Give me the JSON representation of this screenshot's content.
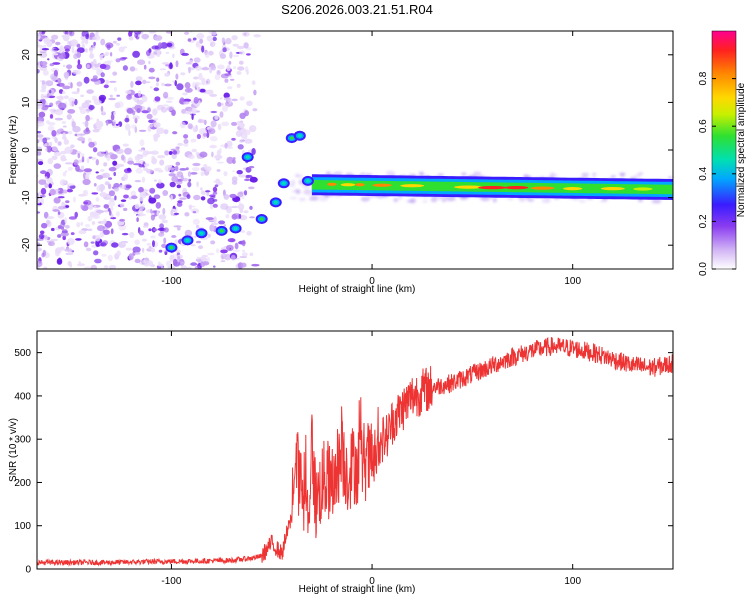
{
  "title": "S206.2026.003.21.51.R04",
  "chart_data": [
    {
      "type": "heatmap",
      "xlabel": "Height of straight line (km)",
      "ylabel": "Frequency (Hz)",
      "xlim": [
        -167,
        150
      ],
      "ylim": [
        -25,
        25
      ],
      "x_ticks": [
        -100,
        0,
        100
      ],
      "y_ticks": [
        20,
        10,
        0,
        -10,
        -20
      ],
      "colorbar": {
        "label": "Normalized spectral amplitude",
        "range": [
          0,
          1
        ],
        "ticks": [
          "0.0",
          "0.2",
          "0.4",
          "0.6",
          "0.8"
        ],
        "tick_values": [
          0.0,
          0.2,
          0.4,
          0.6,
          0.8
        ]
      },
      "tone_track": [
        {
          "x": -100,
          "y": -20.5
        },
        {
          "x": -92,
          "y": -19
        },
        {
          "x": -85,
          "y": -17.5
        },
        {
          "x": -75,
          "y": -17
        },
        {
          "x": -68,
          "y": -16.5
        },
        {
          "x": -62,
          "y": -1.5
        },
        {
          "x": -55,
          "y": -14.5
        },
        {
          "x": -48,
          "y": -11
        },
        {
          "x": -44,
          "y": -7
        },
        {
          "x": -40,
          "y": 2.5
        },
        {
          "x": -36,
          "y": 3
        },
        {
          "x": -32,
          "y": -6.5
        },
        {
          "x": -25,
          "y": -7
        },
        {
          "x": -15,
          "y": -7.2
        },
        {
          "x": 0,
          "y": -7.5
        },
        {
          "x": 20,
          "y": -7.6
        },
        {
          "x": 50,
          "y": -7.8
        },
        {
          "x": 80,
          "y": -7.9
        },
        {
          "x": 110,
          "y": -8.1
        },
        {
          "x": 150,
          "y": -8.3
        }
      ]
    },
    {
      "type": "line",
      "xlabel": "Height of straight line (km)",
      "ylabel": "SNR (10 * v/v)",
      "xlim": [
        -167,
        150
      ],
      "ylim": [
        0,
        550
      ],
      "x_ticks": [
        -100,
        0,
        100
      ],
      "y_ticks": [
        0,
        100,
        200,
        300,
        400,
        500
      ],
      "color": "#ee3333",
      "series": [
        {
          "x": [
            -167,
            -150,
            -130,
            -110,
            -90,
            -70,
            -60,
            -55,
            -50,
            -45,
            -42,
            -40,
            -38,
            -35,
            -32,
            -30,
            -28,
            -25,
            -22,
            -20,
            -18,
            -15,
            -12,
            -10,
            -8,
            -5,
            -2,
            0,
            3,
            5,
            8,
            10,
            15,
            20,
            25,
            30,
            40,
            50,
            60,
            70,
            80,
            90,
            100,
            110,
            120,
            130,
            140,
            150
          ],
          "y": [
            15,
            15,
            15,
            17,
            18,
            20,
            25,
            30,
            60,
            35,
            90,
            120,
            250,
            180,
            120,
            280,
            150,
            200,
            210,
            170,
            230,
            260,
            220,
            240,
            240,
            250,
            250,
            240,
            260,
            300,
            310,
            340,
            370,
            400,
            410,
            420,
            430,
            450,
            470,
            490,
            505,
            515,
            510,
            500,
            485,
            470,
            465,
            475
          ]
        }
      ]
    }
  ]
}
